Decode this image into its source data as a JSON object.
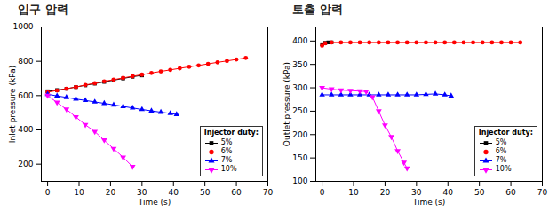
{
  "chart_data": [
    {
      "type": "line",
      "title": "입구 압력",
      "x_label": "Time (s)",
      "y_label": "Inlet pressure (kPa)",
      "xlim": [
        -2,
        70
      ],
      "xticks": [
        0,
        10,
        20,
        30,
        40,
        50,
        60,
        70
      ],
      "ylim": [
        100,
        1000
      ],
      "yticks": [
        200,
        400,
        600,
        800,
        1000
      ],
      "grid": false,
      "legend": "lower right",
      "legend_title": "Injector duty:",
      "series": [
        {
          "name": "5%",
          "color": "#000000",
          "marker": "square",
          "line_style": "solid",
          "x": [
            0,
            3,
            6,
            9,
            12,
            15,
            18,
            21,
            24,
            27,
            30
          ],
          "values": [
            625,
            632,
            640,
            650,
            660,
            670,
            680,
            690,
            700,
            710,
            718
          ]
        },
        {
          "name": "6%",
          "color": "#ff0000",
          "marker": "circle",
          "line_style": "solid",
          "x": [
            0,
            3,
            6,
            9,
            12,
            15,
            18,
            21,
            24,
            27,
            30,
            33,
            36,
            39,
            42,
            45,
            48,
            51,
            54,
            57,
            60,
            63
          ],
          "values": [
            620,
            630,
            640,
            650,
            662,
            672,
            683,
            693,
            703,
            713,
            722,
            732,
            741,
            750,
            759,
            768,
            776,
            785,
            794,
            802,
            811,
            820
          ]
        },
        {
          "name": "7%",
          "color": "#0000ff",
          "marker": "triangle",
          "line_style": "solid",
          "x": [
            0,
            3,
            6,
            9,
            12,
            15,
            18,
            21,
            24,
            27,
            30,
            33,
            36,
            39,
            41
          ],
          "values": [
            608,
            598,
            590,
            580,
            572,
            563,
            555,
            546,
            537,
            528,
            519,
            511,
            503,
            496,
            490
          ]
        },
        {
          "name": "10%",
          "color": "#ff00ff",
          "marker": "triangle-down",
          "line_style": "solid",
          "x": [
            0,
            3,
            6,
            9,
            12,
            15,
            18,
            21,
            24,
            27
          ],
          "values": [
            600,
            560,
            520,
            475,
            430,
            390,
            340,
            290,
            240,
            185
          ]
        }
      ]
    },
    {
      "type": "line",
      "title": "토출 압력",
      "x_label": "Time (s)",
      "y_label": "Outlet pressure (kPa)",
      "xlim": [
        -2,
        70
      ],
      "xticks": [
        0,
        10,
        20,
        30,
        40,
        50,
        60,
        70
      ],
      "ylim": [
        100,
        430
      ],
      "yticks": [
        100,
        150,
        200,
        250,
        300,
        350,
        400
      ],
      "grid": false,
      "legend": "lower right",
      "legend_title": "Injector duty:",
      "series": [
        {
          "name": "5%",
          "color": "#000000",
          "marker": "square",
          "line_style": "solid",
          "x": [
            0,
            1,
            2,
            3
          ],
          "values": [
            393,
            396,
            397,
            397
          ]
        },
        {
          "name": "6%",
          "color": "#ff0000",
          "marker": "circle",
          "line_style": "solid",
          "x": [
            0,
            1,
            3,
            6,
            9,
            12,
            15,
            18,
            21,
            24,
            27,
            30,
            33,
            36,
            39,
            42,
            45,
            48,
            51,
            54,
            57,
            60,
            63
          ],
          "values": [
            390,
            395,
            397,
            397,
            397,
            397,
            397,
            397,
            397,
            397,
            397,
            397,
            397,
            397,
            397,
            397,
            397,
            397,
            397,
            397,
            397,
            397,
            397
          ]
        },
        {
          "name": "7%",
          "color": "#0000ff",
          "marker": "triangle",
          "line_style": "solid",
          "x": [
            0,
            3,
            6,
            9,
            12,
            15,
            18,
            21,
            24,
            27,
            30,
            33,
            36,
            39,
            41
          ],
          "values": [
            285,
            285,
            285,
            285,
            285,
            285,
            285,
            285,
            285,
            285,
            285,
            286,
            287,
            285,
            283
          ]
        },
        {
          "name": "10%",
          "color": "#ff00ff",
          "marker": "triangle-down",
          "line_style": "solid",
          "x": [
            0,
            3,
            6,
            9,
            12,
            14,
            16,
            18,
            20,
            22,
            24,
            26,
            27
          ],
          "values": [
            300,
            297,
            295,
            294,
            293,
            292,
            280,
            250,
            220,
            195,
            165,
            140,
            128
          ]
        }
      ]
    }
  ]
}
